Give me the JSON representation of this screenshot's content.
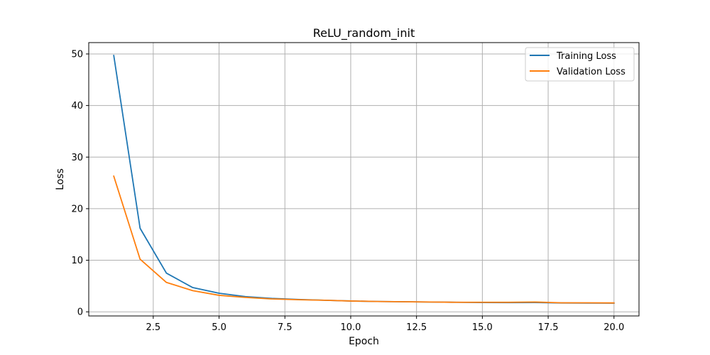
{
  "chart_data": {
    "type": "line",
    "title": "ReLU_random_init",
    "xlabel": "Epoch",
    "ylabel": "Loss",
    "xlim": [
      0.05,
      20.95
    ],
    "ylim": [
      -0.8,
      52.2
    ],
    "x_ticks": [
      2.5,
      5.0,
      7.5,
      10.0,
      12.5,
      15.0,
      17.5,
      20.0
    ],
    "x_tick_labels": [
      "2.5",
      "5.0",
      "7.5",
      "10.0",
      "12.5",
      "15.0",
      "17.5",
      "20.0"
    ],
    "y_ticks": [
      0,
      10,
      20,
      30,
      40,
      50
    ],
    "y_tick_labels": [
      "0",
      "10",
      "20",
      "30",
      "40",
      "50"
    ],
    "grid": true,
    "legend_position": "top-right",
    "x": [
      1,
      2,
      3,
      4,
      5,
      6,
      7,
      8,
      9,
      10,
      11,
      12,
      13,
      14,
      15,
      16,
      17,
      18,
      19,
      20
    ],
    "series": [
      {
        "name": "Training Loss",
        "color": "#1f77b4",
        "values": [
          49.7,
          16.2,
          7.5,
          4.7,
          3.6,
          2.95,
          2.6,
          2.4,
          2.25,
          2.1,
          2.0,
          1.95,
          1.9,
          1.85,
          1.8,
          1.78,
          1.8,
          1.72,
          1.7,
          1.68
        ]
      },
      {
        "name": "Validation Loss",
        "color": "#ff7f0e",
        "values": [
          26.3,
          10.2,
          5.7,
          4.1,
          3.2,
          2.8,
          2.5,
          2.35,
          2.25,
          2.1,
          2.0,
          1.95,
          1.9,
          1.85,
          1.85,
          1.85,
          1.9,
          1.75,
          1.75,
          1.72
        ]
      }
    ]
  }
}
